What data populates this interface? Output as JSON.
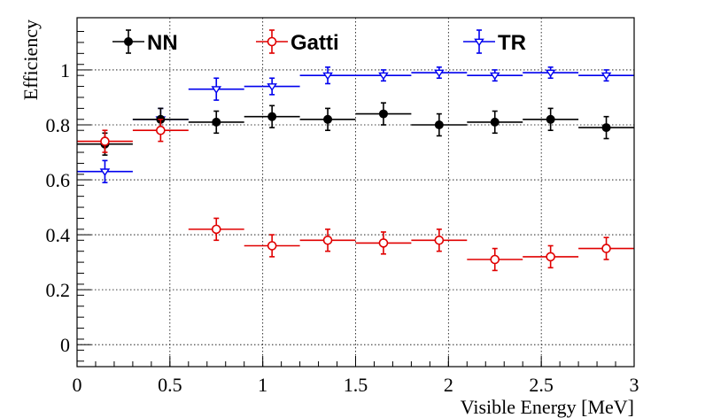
{
  "chart_data": {
    "type": "scatter",
    "xlabel": "Visible Energy [MeV]",
    "ylabel": "Efficiency",
    "xlim": [
      0,
      3
    ],
    "ylim": [
      -0.08,
      1.19
    ],
    "x_ticks": [
      "0",
      "0.5",
      "1",
      "1.5",
      "2",
      "2.5",
      "3"
    ],
    "y_ticks": [
      "0",
      "0.2",
      "0.4",
      "0.6",
      "0.8",
      "1"
    ],
    "grid": true,
    "legend_position": "top",
    "series": [
      {
        "name": "NN",
        "color": "#000000",
        "marker": "filled-circle",
        "x": [
          0.15,
          0.45,
          0.75,
          1.05,
          1.35,
          1.65,
          1.95,
          2.25,
          2.55,
          2.85
        ],
        "x_err": 0.15,
        "y": [
          0.73,
          0.82,
          0.81,
          0.83,
          0.82,
          0.84,
          0.8,
          0.81,
          0.82,
          0.79
        ],
        "y_err": [
          0.04,
          0.04,
          0.04,
          0.04,
          0.04,
          0.04,
          0.04,
          0.04,
          0.04,
          0.04
        ]
      },
      {
        "name": "Gatti",
        "color": "#e00000",
        "marker": "open-circle",
        "x": [
          0.15,
          0.45,
          0.75,
          1.05,
          1.35,
          1.65,
          1.95,
          2.25,
          2.55,
          2.85
        ],
        "x_err": 0.15,
        "y": [
          0.74,
          0.78,
          0.42,
          0.36,
          0.38,
          0.37,
          0.38,
          0.31,
          0.32,
          0.35
        ],
        "y_err": [
          0.04,
          0.04,
          0.04,
          0.04,
          0.04,
          0.04,
          0.04,
          0.04,
          0.04,
          0.04
        ]
      },
      {
        "name": "TR",
        "color": "#0000ee",
        "marker": "open-triangle-down",
        "x": [
          0.15,
          0.45,
          0.75,
          1.05,
          1.35,
          1.65,
          1.95,
          2.25,
          2.55,
          2.85
        ],
        "x_err": 0.15,
        "y": [
          0.63,
          0.82,
          0.93,
          0.94,
          0.98,
          0.98,
          0.99,
          0.98,
          0.99,
          0.98
        ],
        "y_err": [
          0.04,
          0.04,
          0.04,
          0.03,
          0.03,
          0.02,
          0.02,
          0.02,
          0.02,
          0.02
        ]
      }
    ]
  }
}
